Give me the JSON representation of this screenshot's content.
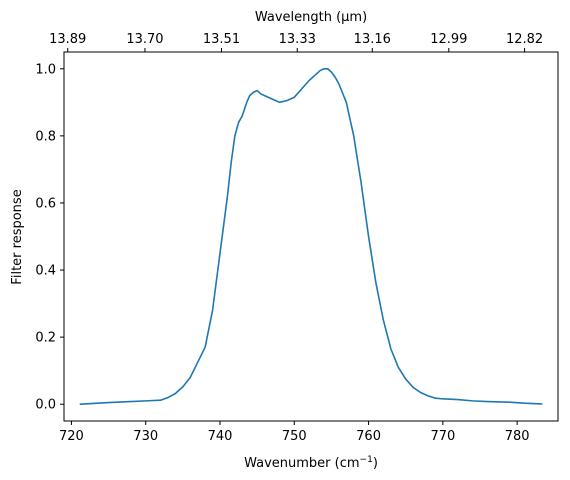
{
  "chart_data": {
    "type": "line",
    "title": "",
    "xlabel": "Wavenumber (cm⁻¹)",
    "ylabel": "Filter response",
    "top_xlabel": "Wavelength (μm)",
    "xlim": [
      719.0,
      785.5
    ],
    "ylim": [
      -0.05,
      1.05
    ],
    "grid": false,
    "legend": "none",
    "line_color": "#1f77b4",
    "x_ticks": [
      720,
      730,
      740,
      750,
      760,
      770,
      780
    ],
    "x_tick_labels": [
      "720",
      "730",
      "740",
      "750",
      "760",
      "770",
      "780"
    ],
    "y_ticks": [
      0.0,
      0.2,
      0.4,
      0.6,
      0.8,
      1.0
    ],
    "y_tick_labels": [
      "0.0",
      "0.2",
      "0.4",
      "0.6",
      "0.8",
      "1.0"
    ],
    "top_ticks": [
      {
        "at": 719.5,
        "label": "13.89"
      },
      {
        "at": 729.9,
        "label": "13.70"
      },
      {
        "at": 740.2,
        "label": "13.51"
      },
      {
        "at": 750.4,
        "label": "13.33"
      },
      {
        "at": 760.5,
        "label": "13.16"
      },
      {
        "at": 770.8,
        "label": "12.99"
      },
      {
        "at": 781.0,
        "label": "12.82"
      }
    ],
    "series": [
      {
        "name": "",
        "x": [
          721.2,
          725.0,
          728.0,
          730.0,
          732.0,
          733.0,
          734.0,
          735.0,
          736.0,
          737.0,
          738.0,
          739.0,
          740.0,
          741.0,
          741.5,
          742.0,
          742.5,
          743.0,
          743.3,
          743.6,
          744.0,
          744.5,
          745.0,
          745.5,
          746.0,
          747.0,
          747.5,
          748.0,
          749.0,
          750.0,
          751.0,
          752.0,
          753.0,
          753.5,
          754.0,
          754.5,
          755.0,
          755.5,
          756.0,
          757.0,
          758.0,
          759.0,
          760.0,
          761.0,
          762.0,
          763.0,
          764.0,
          765.0,
          766.0,
          767.0,
          768.0,
          769.0,
          770.0,
          772.0,
          774.0,
          776.0,
          779.0,
          781.0,
          783.3
        ],
        "y": [
          0.0,
          0.005,
          0.008,
          0.01,
          0.012,
          0.02,
          0.032,
          0.052,
          0.08,
          0.125,
          0.17,
          0.28,
          0.45,
          0.62,
          0.72,
          0.8,
          0.84,
          0.86,
          0.88,
          0.9,
          0.92,
          0.93,
          0.935,
          0.925,
          0.92,
          0.91,
          0.905,
          0.9,
          0.905,
          0.915,
          0.94,
          0.965,
          0.985,
          0.995,
          1.0,
          1.0,
          0.99,
          0.975,
          0.955,
          0.9,
          0.8,
          0.66,
          0.5,
          0.36,
          0.25,
          0.165,
          0.11,
          0.075,
          0.05,
          0.035,
          0.025,
          0.018,
          0.016,
          0.014,
          0.01,
          0.008,
          0.006,
          0.003,
          0.001
        ]
      }
    ]
  }
}
